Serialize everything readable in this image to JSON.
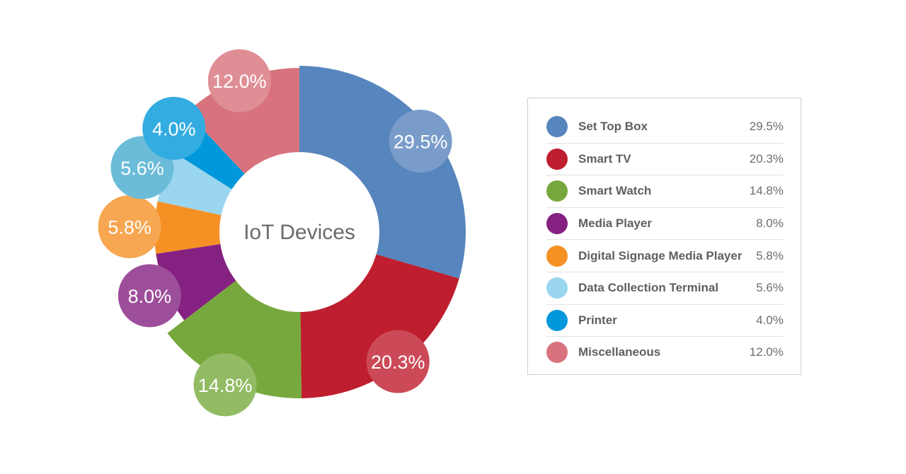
{
  "chart_data": {
    "type": "pie",
    "title": "IoT Devices",
    "slices": [
      {
        "label": "Set Top Box",
        "value": 29.5,
        "display": "29.5%",
        "color": "#5785bd",
        "bubble_color": "#7a9cca"
      },
      {
        "label": "Smart TV",
        "value": 20.3,
        "display": "20.3%",
        "color": "#be1e2d",
        "bubble_color": "#cc4a57"
      },
      {
        "label": "Smart Watch",
        "value": 14.8,
        "display": "14.8%",
        "color": "#77a83e",
        "bubble_color": "#92bb64"
      },
      {
        "label": "Media Player",
        "value": 8.0,
        "display": "8.0%",
        "color": "#842181",
        "bubble_color": "#9d4e9b"
      },
      {
        "label": "Digital Signage Media Player",
        "value": 5.8,
        "display": "5.8%",
        "color": "#f59024",
        "bubble_color": "#f7a651"
      },
      {
        "label": "Data Collection Terminal",
        "value": 5.6,
        "display": "5.6%",
        "color": "#9ad6f0",
        "bubble_color": "#6bbcd8"
      },
      {
        "label": "Printer",
        "value": 4.0,
        "display": "4.0%",
        "color": "#0097db",
        "bubble_color": "#33ace2"
      },
      {
        "label": "Miscellaneous",
        "value": 12.0,
        "display": "12.0%",
        "color": "#d8737d",
        "bubble_color": "#e08e96"
      }
    ],
    "legend_position": "right"
  }
}
